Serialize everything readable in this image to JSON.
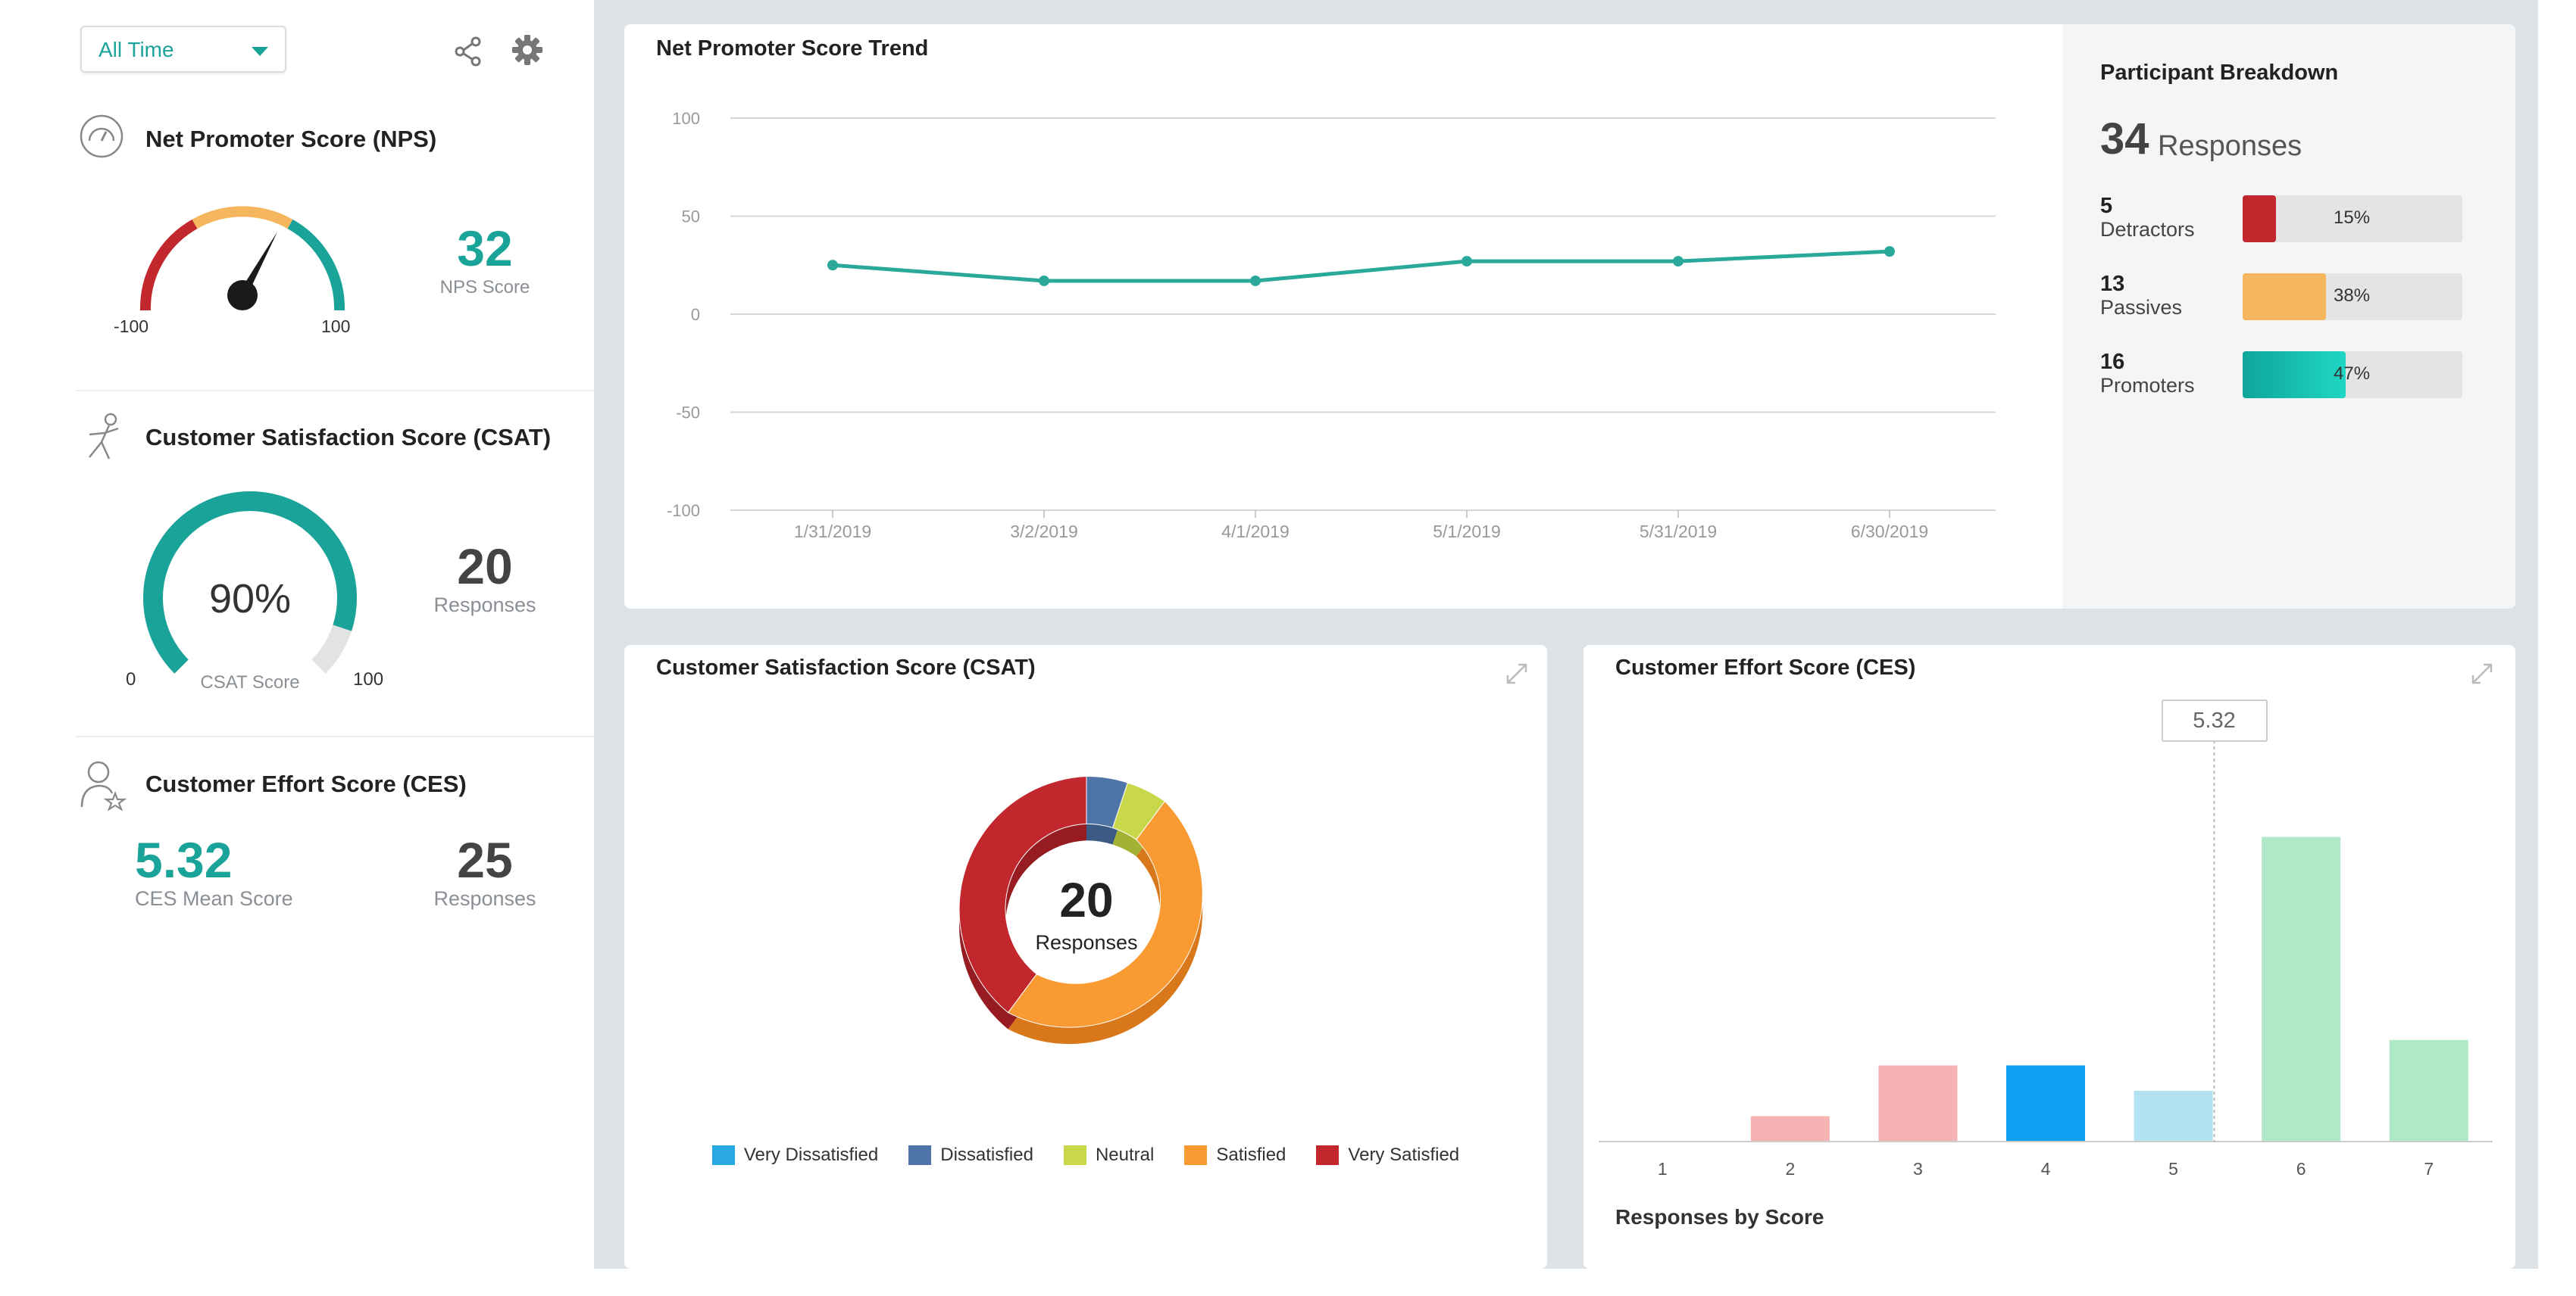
{
  "filter": {
    "selected": "All Time"
  },
  "toolbar": {
    "share_icon": "share-icon",
    "settings_icon": "gear-icon"
  },
  "nps": {
    "title": "Net Promoter Score (NPS)",
    "score": "32",
    "score_label": "NPS Score",
    "min_label": "-100",
    "max_label": "100",
    "score_value": 32
  },
  "csat": {
    "title": "Customer Satisfaction Score (CSAT)",
    "percent": "90%",
    "percent_value": 90,
    "gauge_label": "CSAT Score",
    "min_label": "0",
    "max_label": "100",
    "responses": "20",
    "responses_label": "Responses"
  },
  "ces": {
    "title": "Customer Effort Score (CES)",
    "mean": "5.32",
    "mean_label": "CES Mean Score",
    "responses": "25",
    "responses_label": "Responses"
  },
  "trend": {
    "title": "Net Promoter Score Trend"
  },
  "breakdown": {
    "title": "Participant Breakdown",
    "total": "34",
    "total_label": "Responses",
    "rows": [
      {
        "count": "5",
        "label": "Detractors",
        "pct": "15%",
        "value": 15,
        "color": "#c1272d"
      },
      {
        "count": "13",
        "label": "Passives",
        "pct": "38%",
        "value": 38,
        "color": "#f6b65e"
      },
      {
        "count": "16",
        "label": "Promoters",
        "pct": "47%",
        "value": 47,
        "color": "#16c3b0"
      }
    ]
  },
  "csat_card": {
    "title": "Customer Satisfaction Score (CSAT)",
    "center_value": "20",
    "center_label": "Responses",
    "expand_icon": "expand-icon"
  },
  "ces_card": {
    "title": "Customer Effort Score (CES)",
    "tooltip": "5.32",
    "footer": "Responses by Score",
    "expand_icon": "expand-icon"
  },
  "chart_data": [
    {
      "type": "line",
      "title": "Net Promoter Score Trend",
      "x": [
        "1/31/2019",
        "3/2/2019",
        "4/1/2019",
        "5/1/2019",
        "5/31/2019",
        "6/30/2019"
      ],
      "series": [
        {
          "values": [
            25,
            17,
            17,
            27,
            27,
            32
          ]
        }
      ],
      "ylim": [
        -100,
        100
      ],
      "yticks": [
        "100",
        "50",
        "0",
        "-50",
        "-100"
      ],
      "grid": true,
      "color": "#2aa99b"
    },
    {
      "type": "pie",
      "title": "Customer Satisfaction Score (CSAT)",
      "categories": [
        "Very Dissatisfied",
        "Dissatisfied",
        "Neutral",
        "Satisfied",
        "Very Satisfied"
      ],
      "values": [
        0,
        1,
        1,
        10,
        8
      ],
      "colors": [
        "#29a9e1",
        "#4f75a8",
        "#c8d84a",
        "#f99a33",
        "#c1272d"
      ],
      "legend": "bottom"
    },
    {
      "type": "bar",
      "title": "Customer Effort Score (CES)",
      "categories": [
        "1",
        "2",
        "3",
        "4",
        "5",
        "6",
        "7"
      ],
      "values": [
        0,
        1,
        3,
        3,
        2,
        12,
        4
      ],
      "colors": [
        "#f6b3b3",
        "#f6b3b3",
        "#f6b3b3",
        "#0d9ff0",
        "#b3e3f3",
        "#b0e9c8",
        "#b0e9c8"
      ],
      "mean": 5.32,
      "xlabel": "Responses by Score"
    }
  ]
}
